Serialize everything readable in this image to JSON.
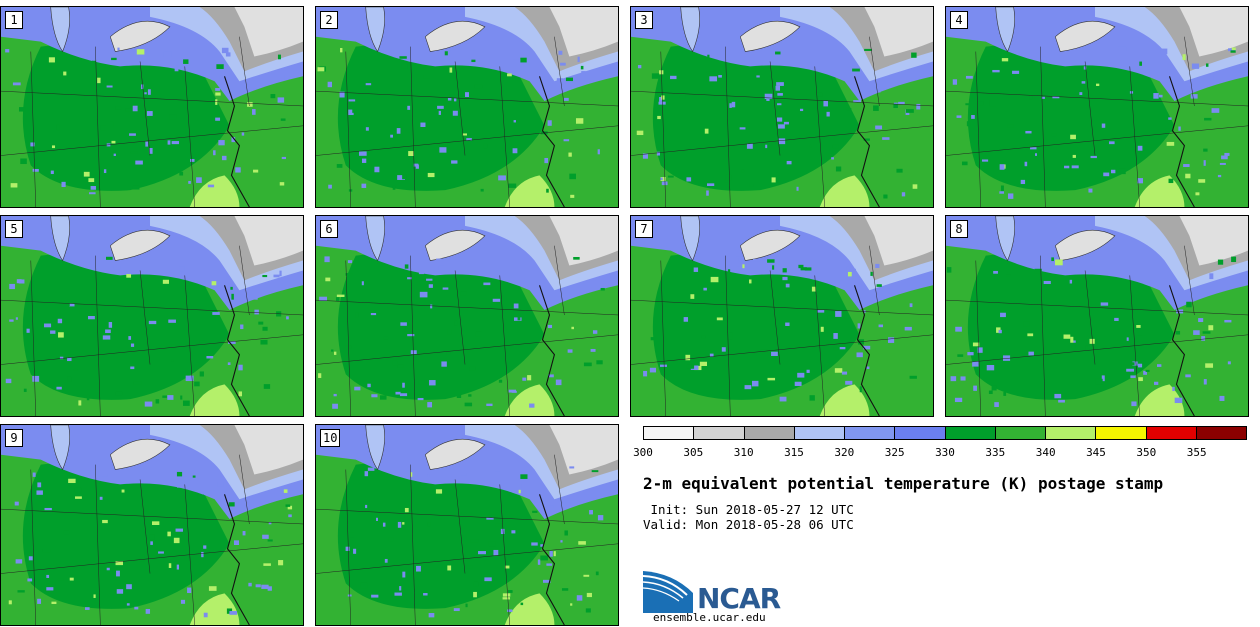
{
  "panels": [
    {
      "label": "1"
    },
    {
      "label": "2"
    },
    {
      "label": "3"
    },
    {
      "label": "4"
    },
    {
      "label": "5"
    },
    {
      "label": "6"
    },
    {
      "label": "7"
    },
    {
      "label": "8"
    },
    {
      "label": "9"
    },
    {
      "label": "10"
    }
  ],
  "colorbar": {
    "colors": [
      "#f5f5f5",
      "#d3d3d3",
      "#a9a9a9",
      "#b0c4f5",
      "#8197f0",
      "#6b7ff0",
      "#009f2b",
      "#33b233",
      "#b4f06a",
      "#f5f500",
      "#e20000",
      "#8b0000"
    ],
    "tick_labels": [
      "300",
      "305",
      "310",
      "315",
      "320",
      "325",
      "330",
      "335",
      "340",
      "345",
      "350",
      "355"
    ]
  },
  "title": "2-m equivalent potential temperature (K) postage stamp",
  "init": " Init: Sun 2018-05-27 12 UTC",
  "valid": "Valid: Mon 2018-05-28 06 UTC",
  "logo": {
    "text": "NCAR",
    "url": "ensemble.ucar.edu"
  },
  "map_colors": {
    "water": "#ffffff",
    "cold_gray_light": "#e0e0e0",
    "cold_gray": "#a9a9a9",
    "light_blue": "#b0c4f5",
    "blue": "#7b8cf0",
    "dark_green": "#009f2b",
    "green": "#33b233",
    "light_green": "#b4f06a"
  }
}
